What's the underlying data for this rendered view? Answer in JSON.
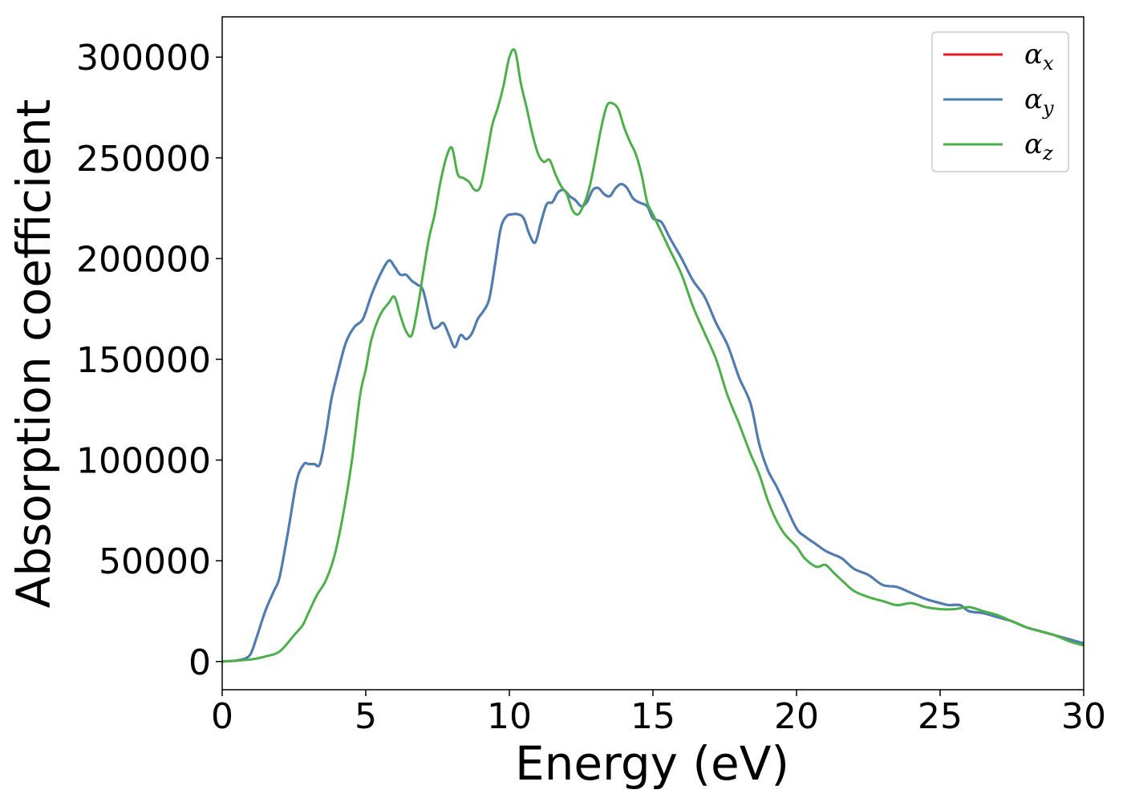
{
  "chart_data": {
    "type": "line",
    "title": "",
    "xlabel": "Energy (eV)",
    "ylabel": "Absorption coefficient",
    "xlim": [
      0,
      30
    ],
    "ylim": [
      -14000,
      320000
    ],
    "xticks": [
      0,
      5,
      10,
      15,
      20,
      25,
      30
    ],
    "xtick_labels": [
      "0",
      "5",
      "10",
      "15",
      "20",
      "25",
      "30"
    ],
    "yticks": [
      0,
      50000,
      100000,
      150000,
      200000,
      250000,
      300000
    ],
    "ytick_labels": [
      "0",
      "50000",
      "100000",
      "150000",
      "200000",
      "250000",
      "300000"
    ],
    "grid": false,
    "legend": "top-right",
    "series": [
      {
        "name": "α",
        "subscript": "x",
        "color": "#e41a1c",
        "x": [
          0,
          0.5,
          0.8,
          1.0,
          1.2,
          1.5,
          1.8,
          2.0,
          2.3,
          2.6,
          2.85,
          3.0,
          3.2,
          3.4,
          3.6,
          3.8,
          4.0,
          4.3,
          4.6,
          4.9,
          5.2,
          5.5,
          5.8,
          6.0,
          6.2,
          6.4,
          6.6,
          6.8,
          7.0,
          7.3,
          7.5,
          7.7,
          7.9,
          8.1,
          8.3,
          8.5,
          8.7,
          8.9,
          9.1,
          9.3,
          9.5,
          9.7,
          9.9,
          10.1,
          10.3,
          10.5,
          10.7,
          10.9,
          11.1,
          11.3,
          11.5,
          11.7,
          11.9,
          12.1,
          12.3,
          12.5,
          12.7,
          12.9,
          13.1,
          13.3,
          13.5,
          13.7,
          13.9,
          14.1,
          14.3,
          14.5,
          14.8,
          15.0,
          15.3,
          15.6,
          16.0,
          16.4,
          16.8,
          17.2,
          17.6,
          18.0,
          18.4,
          18.7,
          19.0,
          19.3,
          19.6,
          20.0,
          20.3,
          20.7,
          21.0,
          21.3,
          21.6,
          22.0,
          22.5,
          23.0,
          23.5,
          24.0,
          24.5,
          25.0,
          25.3,
          25.7,
          26.0,
          26.5,
          27.0,
          27.5,
          28.0,
          28.5,
          29.0,
          29.5,
          30.0
        ],
        "values": [
          0,
          500,
          1500,
          4000,
          12000,
          25000,
          35000,
          42000,
          65000,
          90000,
          98000,
          98000,
          98000,
          98000,
          112000,
          130000,
          142000,
          158000,
          166000,
          170000,
          182000,
          192000,
          199000,
          196000,
          192000,
          192000,
          189000,
          187000,
          184000,
          167000,
          166000,
          168000,
          162000,
          156000,
          162000,
          160000,
          163000,
          170000,
          174000,
          180000,
          197000,
          215000,
          221000,
          222000,
          222000,
          220000,
          212000,
          208000,
          218000,
          227000,
          228000,
          233000,
          234000,
          231000,
          229000,
          226000,
          228000,
          234000,
          235000,
          232000,
          231000,
          235000,
          237000,
          235000,
          230000,
          228000,
          226000,
          220000,
          218000,
          210000,
          200000,
          189000,
          181000,
          168000,
          157000,
          141000,
          128000,
          108000,
          95000,
          87000,
          78000,
          66000,
          62000,
          58000,
          55000,
          53000,
          51000,
          46000,
          43000,
          38000,
          37000,
          34000,
          31000,
          29000,
          28000,
          28000,
          25000,
          24000,
          22000,
          20000,
          17000,
          15000,
          13000,
          11000,
          9000
        ]
      },
      {
        "name": "α",
        "subscript": "y",
        "color": "#4a7fb5",
        "x": [
          0,
          0.5,
          0.8,
          1.0,
          1.2,
          1.5,
          1.8,
          2.0,
          2.3,
          2.6,
          2.85,
          3.0,
          3.2,
          3.4,
          3.6,
          3.8,
          4.0,
          4.3,
          4.6,
          4.9,
          5.2,
          5.5,
          5.8,
          6.0,
          6.2,
          6.4,
          6.6,
          6.8,
          7.0,
          7.3,
          7.5,
          7.7,
          7.9,
          8.1,
          8.3,
          8.5,
          8.7,
          8.9,
          9.1,
          9.3,
          9.5,
          9.7,
          9.9,
          10.1,
          10.3,
          10.5,
          10.7,
          10.9,
          11.1,
          11.3,
          11.5,
          11.7,
          11.9,
          12.1,
          12.3,
          12.5,
          12.7,
          12.9,
          13.1,
          13.3,
          13.5,
          13.7,
          13.9,
          14.1,
          14.3,
          14.5,
          14.8,
          15.0,
          15.3,
          15.6,
          16.0,
          16.4,
          16.8,
          17.2,
          17.6,
          18.0,
          18.4,
          18.7,
          19.0,
          19.3,
          19.6,
          20.0,
          20.3,
          20.7,
          21.0,
          21.3,
          21.6,
          22.0,
          22.5,
          23.0,
          23.5,
          24.0,
          24.5,
          25.0,
          25.3,
          25.7,
          26.0,
          26.5,
          27.0,
          27.5,
          28.0,
          28.5,
          29.0,
          29.5,
          30.0
        ],
        "values": [
          0,
          500,
          1500,
          4000,
          12000,
          25000,
          35000,
          42000,
          65000,
          90000,
          98000,
          98000,
          98000,
          98000,
          112000,
          130000,
          142000,
          158000,
          166000,
          170000,
          182000,
          192000,
          199000,
          196000,
          192000,
          192000,
          189000,
          187000,
          184000,
          167000,
          166000,
          168000,
          162000,
          156000,
          162000,
          160000,
          163000,
          170000,
          174000,
          180000,
          197000,
          215000,
          221000,
          222000,
          222000,
          220000,
          212000,
          208000,
          218000,
          227000,
          228000,
          233000,
          234000,
          231000,
          229000,
          226000,
          228000,
          234000,
          235000,
          232000,
          231000,
          235000,
          237000,
          235000,
          230000,
          228000,
          226000,
          220000,
          218000,
          210000,
          200000,
          189000,
          181000,
          168000,
          157000,
          141000,
          128000,
          108000,
          95000,
          87000,
          78000,
          66000,
          62000,
          58000,
          55000,
          53000,
          51000,
          46000,
          43000,
          38000,
          37000,
          34000,
          31000,
          29000,
          28000,
          28000,
          25000,
          24000,
          22000,
          20000,
          17000,
          15000,
          13000,
          11000,
          9000
        ]
      },
      {
        "name": "α",
        "subscript": "z",
        "color": "#4daf4a",
        "x": [
          0,
          1.0,
          1.5,
          2.0,
          2.5,
          2.8,
          3.0,
          3.3,
          3.6,
          3.9,
          4.2,
          4.5,
          4.8,
          5.0,
          5.2,
          5.5,
          5.8,
          6.0,
          6.2,
          6.4,
          6.6,
          6.8,
          7.0,
          7.2,
          7.4,
          7.6,
          7.8,
          8.0,
          8.2,
          8.4,
          8.6,
          8.8,
          9.0,
          9.2,
          9.4,
          9.6,
          9.8,
          10.0,
          10.2,
          10.4,
          10.6,
          10.8,
          11.0,
          11.2,
          11.4,
          11.6,
          11.8,
          12.0,
          12.2,
          12.4,
          12.6,
          12.8,
          13.0,
          13.2,
          13.4,
          13.6,
          13.8,
          14.0,
          14.2,
          14.4,
          14.6,
          14.8,
          15.0,
          15.3,
          15.6,
          16.0,
          16.4,
          16.8,
          17.2,
          17.6,
          18.0,
          18.4,
          18.7,
          19.0,
          19.3,
          19.6,
          20.0,
          20.3,
          20.7,
          21.0,
          21.3,
          21.6,
          22.0,
          22.5,
          23.0,
          23.5,
          24.0,
          24.5,
          25.0,
          25.5,
          26.0,
          26.5,
          27.0,
          27.5,
          28.0,
          28.5,
          29.0,
          29.5,
          30.0
        ],
        "values": [
          0,
          1000,
          2500,
          5000,
          13000,
          18000,
          24000,
          33000,
          40000,
          52000,
          72000,
          98000,
          132000,
          145000,
          160000,
          172000,
          178000,
          181000,
          172000,
          164000,
          162000,
          175000,
          193000,
          210000,
          222000,
          238000,
          250000,
          255000,
          242000,
          240000,
          238000,
          234000,
          236000,
          250000,
          266000,
          275000,
          286000,
          300000,
          303000,
          287000,
          275000,
          262000,
          252000,
          248000,
          249000,
          242000,
          236000,
          232000,
          224000,
          222000,
          227000,
          236000,
          250000,
          265000,
          276000,
          277000,
          274000,
          265000,
          258000,
          252000,
          242000,
          228000,
          222000,
          213000,
          204000,
          192000,
          176000,
          163000,
          150000,
          132000,
          118000,
          103000,
          93000,
          80000,
          70000,
          63000,
          57000,
          51000,
          47000,
          48000,
          44000,
          40000,
          35000,
          32000,
          30000,
          28000,
          29000,
          27000,
          26000,
          26000,
          27000,
          25000,
          23000,
          20000,
          17000,
          15000,
          13000,
          10000,
          8000
        ]
      }
    ]
  }
}
